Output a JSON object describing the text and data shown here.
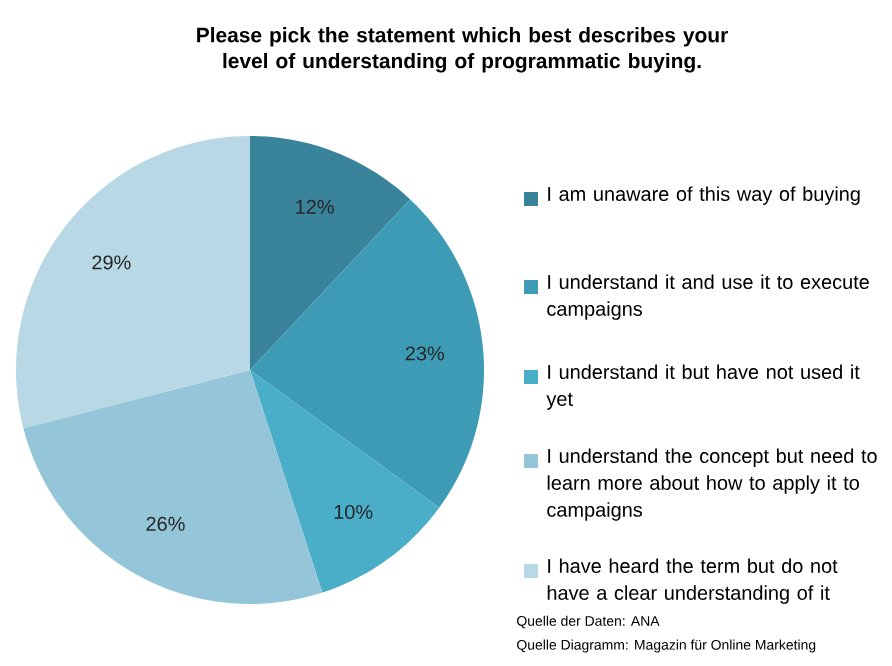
{
  "chart_data": {
    "type": "pie",
    "title": "Please pick the statement which best describes your level of understanding of programmatic buying.",
    "categories": [
      "I am unaware of this way of buying",
      "I understand it and use it to execute campaigns",
      "I understand it but have not used it yet",
      "I understand the concept but need to learn more about how to apply it to campaigns",
      "I have heard the term but do not have a clear understanding of it"
    ],
    "values": [
      12,
      23,
      10,
      26,
      29
    ],
    "colors": [
      "#3a849b",
      "#3d9bb5",
      "#4aaec8",
      "#94c5d8",
      "#b9d8e5"
    ],
    "value_labels": [
      "12%",
      "23%",
      "10%",
      "26%",
      "29%"
    ],
    "legend": "right",
    "annotations": [
      "Quelle der Daten: ANA",
      "Quelle Diagramm: Magazin für Online Marketing"
    ]
  }
}
